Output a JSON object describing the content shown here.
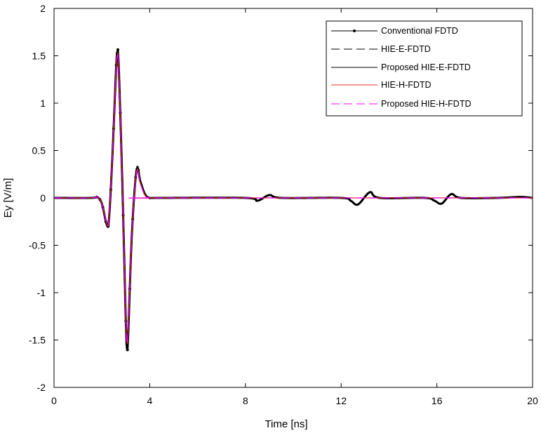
{
  "chart_data": {
    "type": "line",
    "title": "",
    "xlabel": "Time [ns]",
    "ylabel": "Ey [V/m]",
    "xlim": [
      0,
      20
    ],
    "ylim": [
      -2,
      2
    ],
    "xticks": [
      0,
      4,
      8,
      12,
      16,
      20
    ],
    "yticks": [
      2,
      1.5,
      1,
      0.5,
      0,
      -0.5,
      -1,
      -1.5,
      -2
    ],
    "xtick_labels": [
      "0",
      "4",
      "8",
      "12",
      "16",
      "20"
    ],
    "ytick_labels": [
      "2",
      "1.5",
      "1",
      "0.5",
      "0",
      "-0.5",
      "-1",
      "-1.5",
      "-2"
    ],
    "grid": false,
    "legend_position": "top-right",
    "series": [
      {
        "name": "Conventional FDTD",
        "color": "#000000",
        "style": "solid-dots",
        "x": [
          0,
          1.6,
          1.8,
          2.0,
          2.2,
          2.3,
          2.45,
          2.6,
          2.65,
          2.7,
          2.85,
          3.0,
          3.05,
          3.1,
          3.25,
          3.45,
          3.6,
          3.8,
          4.0,
          4.4,
          8.0,
          8.5,
          9.0,
          9.5,
          12.0,
          12.4,
          12.7,
          13.2,
          13.6,
          15.5,
          15.9,
          16.2,
          16.6,
          17.0,
          18.5,
          19.5,
          20.0
        ],
        "y": [
          0,
          0,
          0.01,
          -0.06,
          -0.28,
          -0.22,
          0.5,
          1.4,
          1.54,
          1.42,
          0.2,
          -1.3,
          -1.59,
          -1.45,
          -0.4,
          0.3,
          0.18,
          0.04,
          0,
          0,
          0,
          -0.03,
          0.03,
          0,
          0,
          -0.03,
          -0.07,
          0.06,
          0,
          0,
          -0.03,
          -0.06,
          0.04,
          0,
          0,
          0.01,
          0
        ]
      },
      {
        "name": "HIE-E-FDTD",
        "color": "#000000",
        "style": "dashed",
        "x": [
          0,
          1.6,
          1.8,
          2.0,
          2.2,
          2.3,
          2.45,
          2.6,
          2.65,
          2.7,
          2.85,
          3.0,
          3.05,
          3.1,
          3.25,
          3.45,
          3.6,
          3.8,
          4.0,
          4.4,
          8.0,
          8.5,
          9.0,
          9.5,
          12.0,
          12.4,
          12.7,
          13.2,
          13.6,
          15.5,
          15.9,
          16.2,
          16.6,
          17.0,
          18.5,
          19.5,
          20.0
        ],
        "y": [
          0,
          0,
          0.01,
          -0.06,
          -0.28,
          -0.22,
          0.5,
          1.4,
          1.53,
          1.42,
          0.2,
          -1.3,
          -1.57,
          -1.45,
          -0.4,
          0.3,
          0.18,
          0.04,
          0,
          0,
          0,
          -0.03,
          0.03,
          0,
          0,
          -0.03,
          -0.07,
          0.06,
          0,
          0,
          -0.03,
          -0.06,
          0.04,
          0,
          0,
          0.01,
          0
        ]
      },
      {
        "name": "Proposed HIE-E-FDTD",
        "color": "#000000",
        "style": "solid",
        "x": [
          0,
          1.6,
          1.8,
          2.0,
          2.2,
          2.3,
          2.45,
          2.6,
          2.65,
          2.7,
          2.85,
          3.0,
          3.05,
          3.1,
          3.25,
          3.45,
          3.6,
          3.8,
          4.0,
          4.4,
          8.0,
          8.5,
          9.0,
          9.5,
          12.0,
          12.4,
          12.7,
          13.2,
          13.6,
          15.5,
          15.9,
          16.2,
          16.6,
          17.0,
          18.5,
          19.5,
          20.0
        ],
        "y": [
          0,
          0,
          0.01,
          -0.06,
          -0.28,
          -0.22,
          0.5,
          1.4,
          1.53,
          1.42,
          0.2,
          -1.3,
          -1.57,
          -1.45,
          -0.4,
          0.3,
          0.18,
          0.04,
          0,
          0,
          0,
          -0.03,
          0.03,
          0,
          0,
          -0.03,
          -0.07,
          0.06,
          0,
          0,
          -0.03,
          -0.06,
          0.04,
          0,
          0,
          0.01,
          0
        ]
      },
      {
        "name": "HIE-H-FDTD",
        "color": "#e8312a",
        "style": "solid",
        "x": [
          0,
          1.6,
          1.8,
          2.0,
          2.2,
          2.3,
          2.45,
          2.6,
          2.65,
          2.7,
          2.85,
          3.0,
          3.05,
          3.1,
          3.25,
          3.45,
          3.6,
          3.8,
          4.0,
          4.4,
          20.0
        ],
        "y": [
          0,
          0,
          0.01,
          -0.06,
          -0.27,
          -0.22,
          0.5,
          1.38,
          1.5,
          1.4,
          0.2,
          -1.28,
          -1.52,
          -1.4,
          -0.4,
          0.28,
          0.16,
          0.03,
          0,
          0,
          0
        ]
      },
      {
        "name": "Proposed HIE-H-FDTD",
        "color": "#ff00ff",
        "style": "dashed",
        "x": [
          0,
          1.6,
          1.8,
          2.0,
          2.2,
          2.3,
          2.45,
          2.6,
          2.65,
          2.7,
          2.85,
          3.0,
          3.05,
          3.1,
          3.25,
          3.45,
          3.6,
          3.8,
          4.0,
          4.4,
          20.0
        ],
        "y": [
          0,
          0,
          0.01,
          -0.06,
          -0.27,
          -0.22,
          0.5,
          1.38,
          1.5,
          1.4,
          0.2,
          -1.28,
          -1.52,
          -1.4,
          -0.4,
          0.28,
          0.16,
          0.03,
          0,
          0,
          0
        ]
      }
    ]
  }
}
